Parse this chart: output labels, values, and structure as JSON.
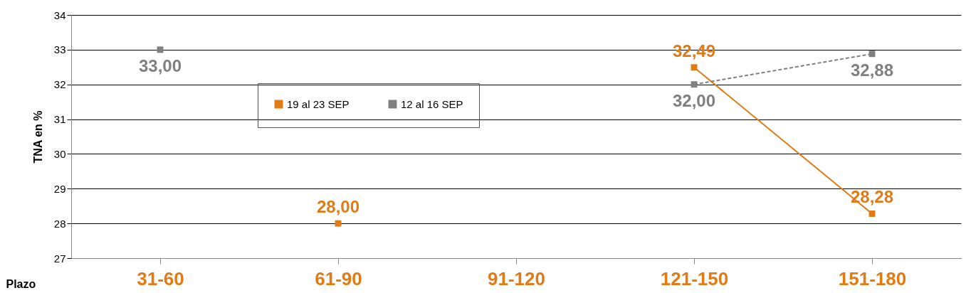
{
  "chart_data": {
    "type": "line",
    "xlabel": "Plazo",
    "ylabel": "TNA en %",
    "categories": [
      "31-60",
      "61-90",
      "91-120",
      "121-150",
      "151-180"
    ],
    "series": [
      {
        "name": "19 al 23 SEP",
        "color": "#e07b16",
        "line_style": "solid",
        "values": [
          null,
          28.0,
          null,
          32.49,
          28.28
        ],
        "value_labels": [
          null,
          "28,00",
          null,
          "32,49",
          "28,28"
        ]
      },
      {
        "name": "12 al 16 SEP",
        "color": "#808080",
        "line_style": "dashed",
        "values": [
          33.0,
          null,
          null,
          32.0,
          32.88
        ],
        "value_labels": [
          "33,00",
          null,
          null,
          "32,00",
          "32,88"
        ]
      }
    ],
    "ylim": [
      27,
      34
    ],
    "yticks": [
      27,
      28,
      29,
      30,
      31,
      32,
      33,
      34
    ],
    "grid": "y",
    "legend": "top",
    "marker": "square"
  }
}
